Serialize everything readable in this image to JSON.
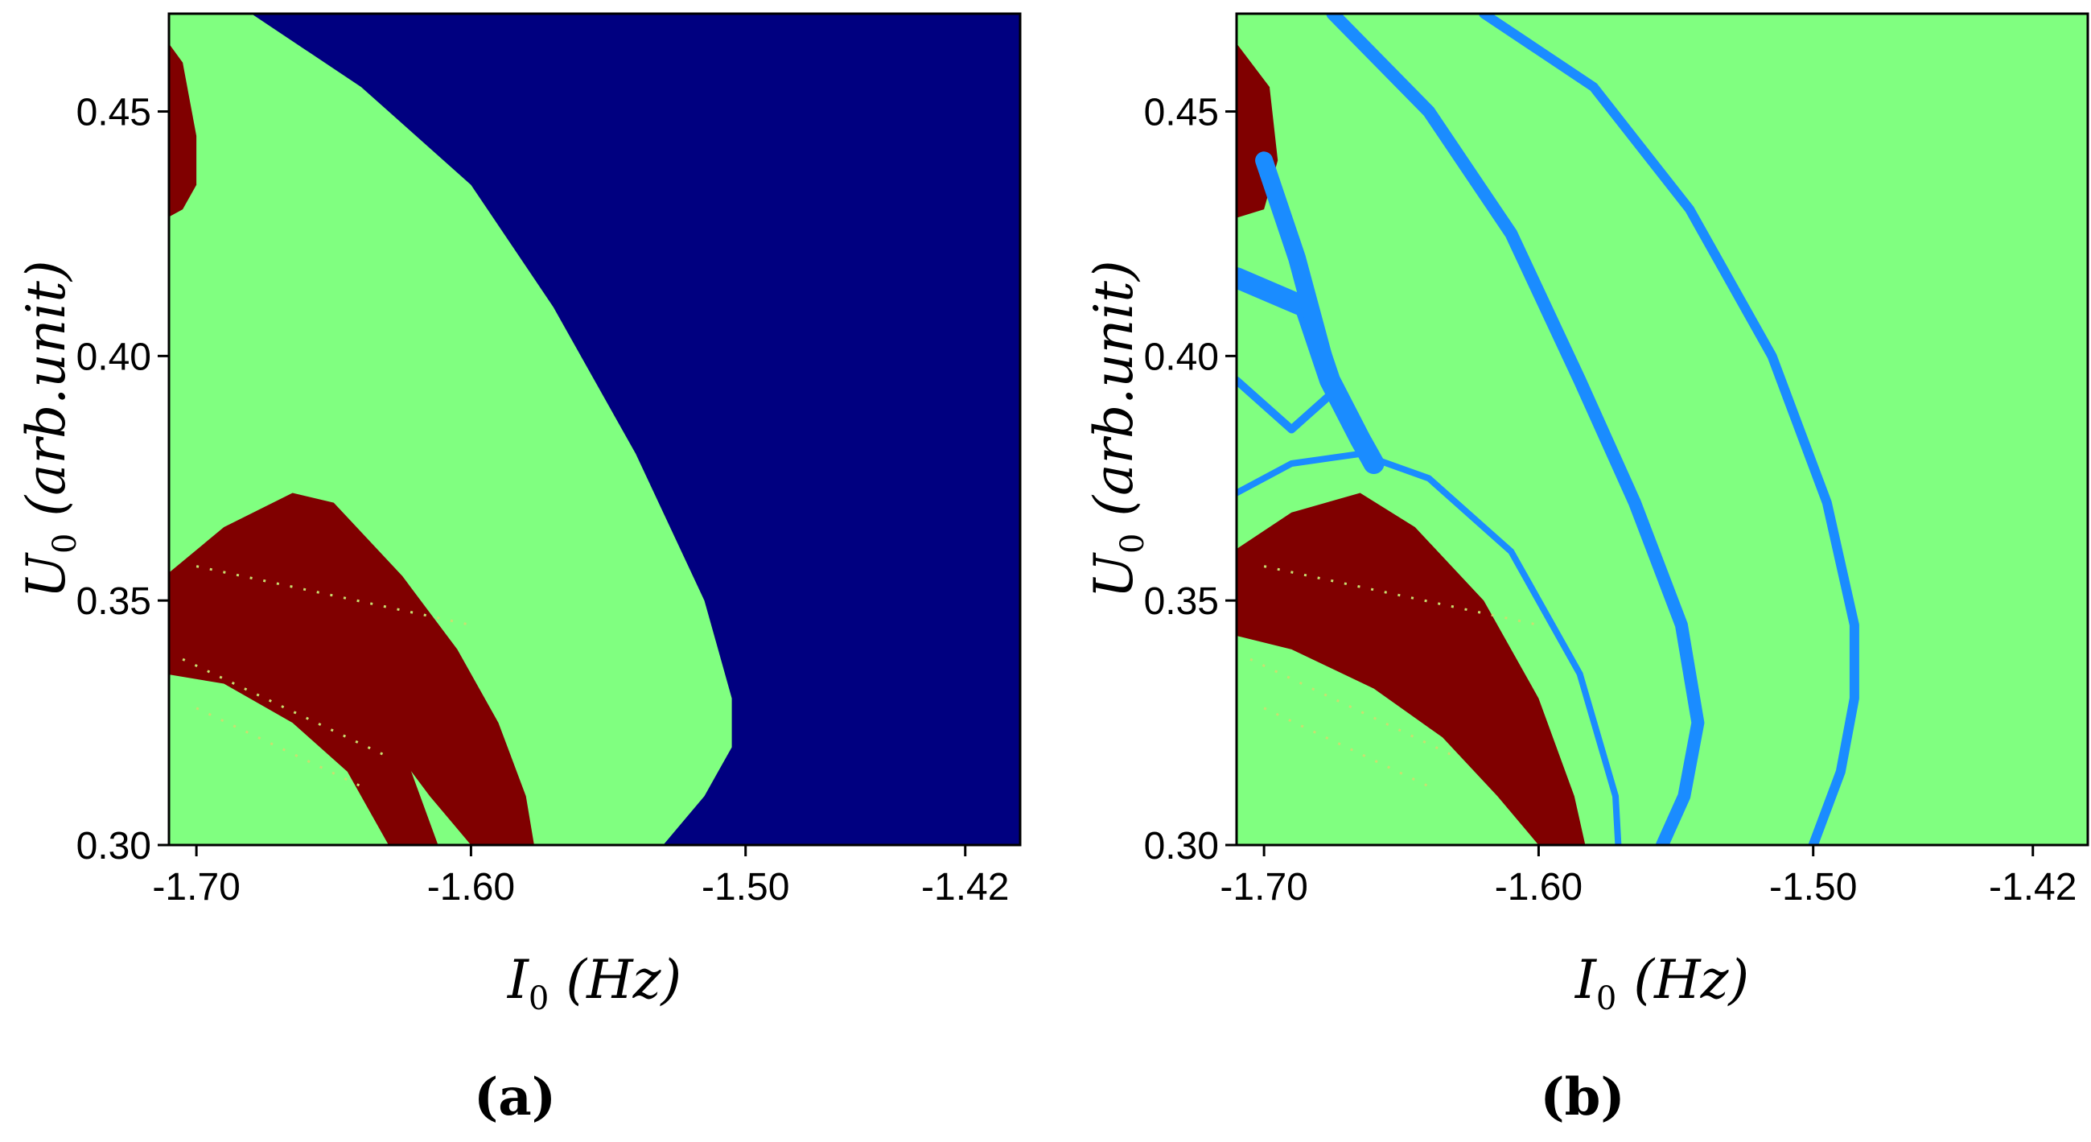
{
  "chart_data": [
    {
      "type": "heatmap",
      "panel_label": "(a)",
      "xlabel": {
        "main": "I",
        "sub": "0",
        "unit": "(Hz)"
      },
      "ylabel": {
        "main": "U",
        "sub": "0",
        "unit": "(arb.unit)"
      },
      "xlim": [
        -1.71,
        -1.4
      ],
      "ylim": [
        0.3,
        0.47
      ],
      "x_ticks": [
        -1.7,
        -1.6,
        -1.5,
        -1.42
      ],
      "x_tick_labels": [
        "-1.70",
        "-1.60",
        "-1.50",
        "-1.42"
      ],
      "y_ticks": [
        0.3,
        0.35,
        0.4,
        0.45
      ],
      "y_tick_labels": [
        "0.30",
        "0.35",
        "0.40",
        "0.45"
      ],
      "colors": {
        "background": "#80ff80",
        "dark_red": "#800000",
        "navy": "#000080"
      },
      "regions": [
        {
          "name": "navy-region",
          "color": "navy",
          "boundary": [
            [
              -1.68,
              0.47
            ],
            [
              -1.64,
              0.455
            ],
            [
              -1.6,
              0.435
            ],
            [
              -1.57,
              0.41
            ],
            [
              -1.54,
              0.38
            ],
            [
              -1.515,
              0.35
            ],
            [
              -1.505,
              0.33
            ],
            [
              -1.505,
              0.32
            ],
            [
              -1.515,
              0.31
            ],
            [
              -1.53,
              0.3
            ]
          ]
        },
        {
          "name": "upper-left-blob",
          "color": "dark_red",
          "boundary": [
            [
              -1.71,
              0.465
            ],
            [
              -1.705,
              0.46
            ],
            [
              -1.7,
              0.445
            ],
            [
              -1.7,
              0.435
            ],
            [
              -1.705,
              0.43
            ],
            [
              -1.71,
              0.428
            ]
          ]
        },
        {
          "name": "lower-left-band",
          "color": "dark_red",
          "boundary": [
            [
              -1.71,
              0.355
            ],
            [
              -1.69,
              0.365
            ],
            [
              -1.665,
              0.372
            ],
            [
              -1.65,
              0.37
            ],
            [
              -1.625,
              0.355
            ],
            [
              -1.605,
              0.34
            ],
            [
              -1.59,
              0.325
            ],
            [
              -1.58,
              0.31
            ],
            [
              -1.577,
              0.3
            ],
            [
              -1.6,
              0.3
            ],
            [
              -1.615,
              0.31
            ],
            [
              -1.635,
              0.325
            ],
            [
              -1.66,
              0.335
            ],
            [
              -1.69,
              0.342
            ],
            [
              -1.71,
              0.345
            ]
          ]
        },
        {
          "name": "lower-left-band-2",
          "color": "dark_red",
          "boundary": [
            [
              -1.71,
              0.35
            ],
            [
              -1.675,
              0.346
            ],
            [
              -1.645,
              0.335
            ],
            [
              -1.625,
              0.32
            ],
            [
              -1.612,
              0.3
            ],
            [
              -1.63,
              0.3
            ],
            [
              -1.645,
              0.315
            ],
            [
              -1.665,
              0.325
            ],
            [
              -1.69,
              0.333
            ],
            [
              -1.71,
              0.335
            ]
          ]
        }
      ]
    },
    {
      "type": "heatmap",
      "panel_label": "(b)",
      "xlabel": {
        "main": "I",
        "sub": "0",
        "unit": "(Hz)"
      },
      "ylabel": {
        "main": "U",
        "sub": "0",
        "unit": "(arb.unit)"
      },
      "xlim": [
        -1.71,
        -1.4
      ],
      "ylim": [
        0.3,
        0.47
      ],
      "x_ticks": [
        -1.7,
        -1.6,
        -1.5,
        -1.42
      ],
      "x_tick_labels": [
        "-1.70",
        "-1.60",
        "-1.50",
        "-1.42"
      ],
      "y_ticks": [
        0.3,
        0.35,
        0.4,
        0.45
      ],
      "y_tick_labels": [
        "0.30",
        "0.35",
        "0.40",
        "0.45"
      ],
      "colors": {
        "background": "#80ff80",
        "dark_red": "#800000",
        "sky_blue": "#1a8cff"
      },
      "regions": [
        {
          "name": "upper-left-blob",
          "color": "dark_red",
          "boundary": [
            [
              -1.71,
              0.465
            ],
            [
              -1.698,
              0.455
            ],
            [
              -1.695,
              0.44
            ],
            [
              -1.7,
              0.43
            ],
            [
              -1.71,
              0.428
            ]
          ]
        },
        {
          "name": "lower-left-band",
          "color": "dark_red",
          "boundary": [
            [
              -1.71,
              0.36
            ],
            [
              -1.69,
              0.368
            ],
            [
              -1.665,
              0.372
            ],
            [
              -1.645,
              0.365
            ],
            [
              -1.62,
              0.35
            ],
            [
              -1.6,
              0.33
            ],
            [
              -1.587,
              0.31
            ],
            [
              -1.583,
              0.3
            ],
            [
              -1.6,
              0.3
            ],
            [
              -1.615,
              0.31
            ],
            [
              -1.635,
              0.322
            ],
            [
              -1.66,
              0.332
            ],
            [
              -1.69,
              0.34
            ],
            [
              -1.71,
              0.343
            ]
          ]
        }
      ],
      "curves": [
        {
          "name": "outer-stripe",
          "color": "sky_blue",
          "width": 12,
          "points": [
            [
              -1.62,
              0.47
            ],
            [
              -1.58,
              0.455
            ],
            [
              -1.545,
              0.43
            ],
            [
              -1.515,
              0.4
            ],
            [
              -1.495,
              0.37
            ],
            [
              -1.485,
              0.345
            ],
            [
              -1.485,
              0.33
            ],
            [
              -1.49,
              0.315
            ],
            [
              -1.5,
              0.3
            ]
          ]
        },
        {
          "name": "middle-stripe",
          "color": "sky_blue",
          "width": 16,
          "points": [
            [
              -1.675,
              0.47
            ],
            [
              -1.64,
              0.45
            ],
            [
              -1.61,
              0.425
            ],
            [
              -1.585,
              0.395
            ],
            [
              -1.565,
              0.37
            ],
            [
              -1.548,
              0.345
            ],
            [
              -1.542,
              0.325
            ],
            [
              -1.547,
              0.31
            ],
            [
              -1.555,
              0.3
            ]
          ]
        },
        {
          "name": "inner-arc",
          "color": "sky_blue",
          "width": 8,
          "points": [
            [
              -1.71,
              0.372
            ],
            [
              -1.69,
              0.378
            ],
            [
              -1.665,
              0.38
            ],
            [
              -1.64,
              0.375
            ],
            [
              -1.61,
              0.36
            ],
            [
              -1.585,
              0.335
            ],
            [
              -1.572,
              0.31
            ],
            [
              -1.571,
              0.3
            ]
          ]
        },
        {
          "name": "branch-arm",
          "color": "sky_blue",
          "width": 26,
          "points": [
            [
              -1.71,
              0.416
            ],
            [
              -1.685,
              0.41
            ],
            [
              -1.676,
              0.395
            ],
            [
              -1.665,
              0.383
            ],
            [
              -1.66,
              0.378
            ]
          ]
        },
        {
          "name": "branch-stem",
          "color": "sky_blue",
          "width": 22,
          "points": [
            [
              -1.7,
              0.44
            ],
            [
              -1.688,
              0.42
            ],
            [
              -1.676,
              0.395
            ]
          ]
        },
        {
          "name": "branch-lower",
          "color": "sky_blue",
          "width": 10,
          "points": [
            [
              -1.71,
              0.395
            ],
            [
              -1.69,
              0.385
            ],
            [
              -1.676,
              0.392
            ]
          ]
        }
      ]
    }
  ]
}
